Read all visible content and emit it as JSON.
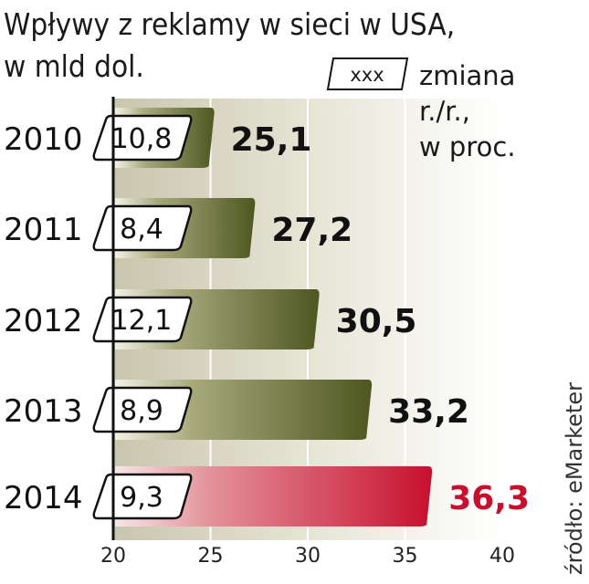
{
  "title_line1": "Wpływy z reklamy w sieci w USA,",
  "title_line2": "w mld dol.",
  "legend": {
    "key": "xxx",
    "line1": "zmiana",
    "line2": "r./r.,",
    "line3": "w proc."
  },
  "source": "źródło: eMarketer",
  "colors": {
    "bar": "#5a6226",
    "bar_highlight": "#c8102e",
    "value_highlight": "#c8102e"
  },
  "chart_data": {
    "type": "bar",
    "orientation": "horizontal",
    "categories": [
      "2010",
      "2011",
      "2012",
      "2013",
      "2014"
    ],
    "values": [
      25.1,
      27.2,
      30.5,
      33.2,
      36.3
    ],
    "value_labels": [
      "25,1",
      "27,2",
      "30,5",
      "33,2",
      "36,3"
    ],
    "yoy_change_labels": [
      "10,8",
      "8,4",
      "12,1",
      "8,9",
      "9,3"
    ],
    "xlim": [
      20,
      40
    ],
    "xticks": [
      "20",
      "25",
      "30",
      "35",
      "40"
    ],
    "highlight_category": "2014",
    "grid": true
  }
}
